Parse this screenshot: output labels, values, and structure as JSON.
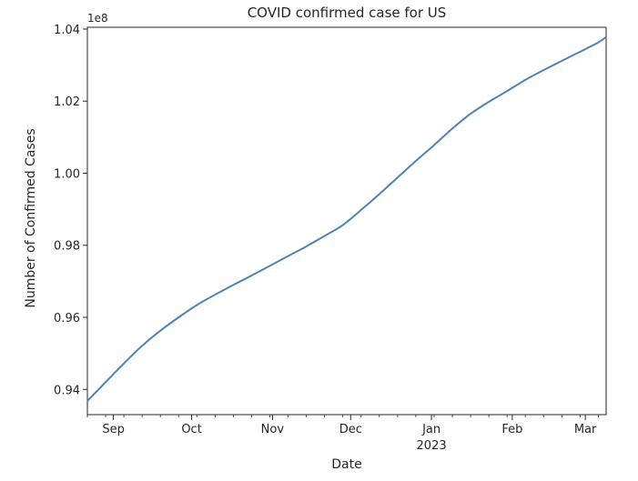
{
  "chart_data": {
    "type": "line",
    "title": "COVID confirmed case for US",
    "xlabel": "Date",
    "ylabel": "Number of Confirmed Cases",
    "y_offset_label": "1e8",
    "y_multiplier": 100000000,
    "xlim": [
      "2022-08-22",
      "2023-03-09"
    ],
    "ylim": [
      0.933,
      1.0405
    ],
    "grid": false,
    "legend": "none",
    "line_color": "#4c84b5",
    "x_ticks": [
      {
        "date": "2022-09-01",
        "label": "Sep"
      },
      {
        "date": "2022-10-01",
        "label": "Oct"
      },
      {
        "date": "2022-11-01",
        "label": "Nov"
      },
      {
        "date": "2022-12-01",
        "label": "Dec"
      },
      {
        "date": "2023-01-01",
        "label": "Jan",
        "sublabel": "2023"
      },
      {
        "date": "2023-02-01",
        "label": "Feb"
      },
      {
        "date": "2023-03-01",
        "label": "Mar"
      }
    ],
    "y_ticks": [
      0.94,
      0.96,
      0.98,
      1.0,
      1.02,
      1.04
    ],
    "y_tick_labels": [
      "0.94",
      "0.96",
      "0.98",
      "1.00",
      "1.02",
      "1.04"
    ],
    "series": [
      {
        "x": [
          "2022-08-22",
          "2022-08-29",
          "2022-09-05",
          "2022-09-12",
          "2022-09-19",
          "2022-09-26",
          "2022-10-03",
          "2022-10-10",
          "2022-10-17",
          "2022-10-24",
          "2022-10-31",
          "2022-11-07",
          "2022-11-14",
          "2022-11-21",
          "2022-11-28",
          "2022-12-05",
          "2022-12-12",
          "2022-12-19",
          "2022-12-26",
          "2023-01-02",
          "2023-01-09",
          "2023-01-16",
          "2023-01-23",
          "2023-01-30",
          "2023-02-06",
          "2023-02-13",
          "2023-02-20",
          "2023-02-27",
          "2023-03-06",
          "2023-03-09"
        ],
        "y": [
          0.9368,
          0.942,
          0.9472,
          0.9521,
          0.9563,
          0.96,
          0.9634,
          0.9663,
          0.969,
          0.9716,
          0.9743,
          0.977,
          0.9797,
          0.9826,
          0.9856,
          0.9898,
          0.9942,
          0.9988,
          1.0034,
          1.0078,
          1.0124,
          1.0165,
          1.0198,
          1.0228,
          1.0259,
          1.0286,
          1.0312,
          1.0337,
          1.0363,
          1.0378
        ]
      }
    ]
  }
}
